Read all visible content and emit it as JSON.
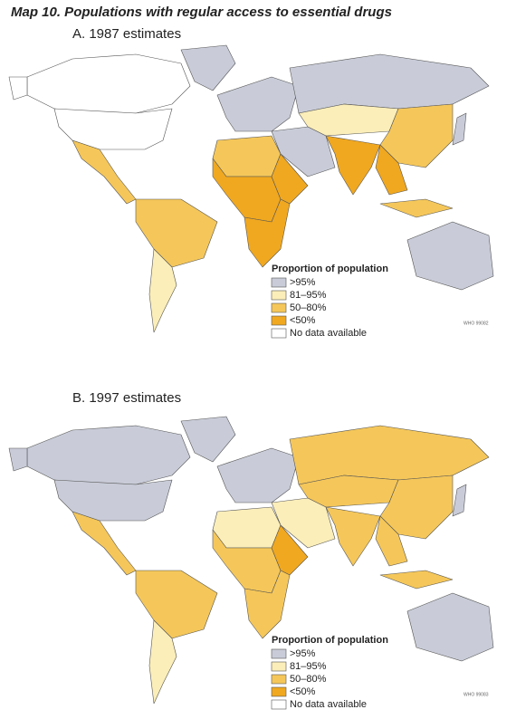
{
  "title": "Map 10. Populations with regular access to essential drugs",
  "maps": [
    {
      "subtitle": "A. 1987 estimates",
      "legend": {
        "title": "Proportion of population",
        "items": [
          {
            "label": ">95%",
            "color": "#c9ccd8"
          },
          {
            "label": "81–95%",
            "color": "#fbeeb9"
          },
          {
            "label": "50–80%",
            "color": "#f5c75a"
          },
          {
            "label": "<50%",
            "color": "#f0a820"
          },
          {
            "label": "No data available",
            "color": "#ffffff"
          }
        ]
      },
      "code": "WHO 99082"
    },
    {
      "subtitle": "B. 1997 estimates",
      "legend": {
        "title": "Proportion of population",
        "items": [
          {
            "label": ">95%",
            "color": "#c9ccd8"
          },
          {
            "label": "81–95%",
            "color": "#fbeeb9"
          },
          {
            "label": "50–80%",
            "color": "#f5c75a"
          },
          {
            "label": "<50%",
            "color": "#f0a820"
          },
          {
            "label": "No data available",
            "color": "#ffffff"
          }
        ]
      },
      "code": "WHO 99083"
    }
  ]
}
